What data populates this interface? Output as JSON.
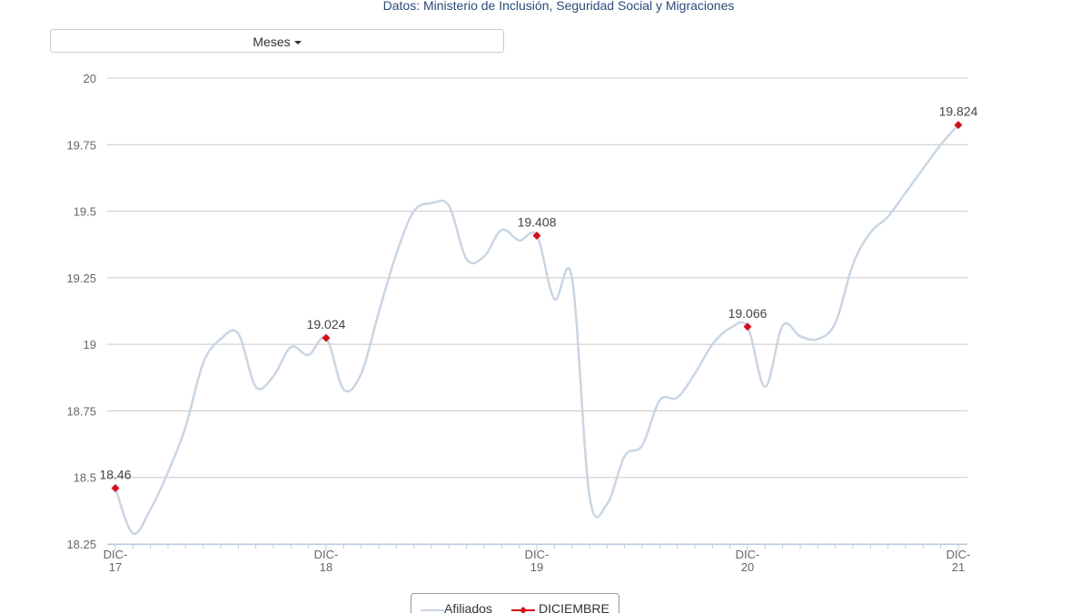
{
  "chart_data": {
    "type": "line",
    "subtitle": "Datos: Ministerio de Inclusión, Seguridad Social y Migraciones",
    "dropdown_label": "Meses",
    "categories": [
      "DIC-17",
      null,
      null,
      null,
      null,
      null,
      null,
      null,
      null,
      null,
      null,
      null,
      "DIC-18",
      null,
      null,
      null,
      null,
      null,
      null,
      null,
      null,
      null,
      null,
      null,
      "DIC-19",
      null,
      null,
      null,
      null,
      null,
      null,
      null,
      null,
      null,
      null,
      null,
      "DIC-20",
      null,
      null,
      null,
      null,
      null,
      null,
      null,
      null,
      null,
      null,
      null,
      "DIC-21"
    ],
    "series": [
      {
        "name": "Afiliados",
        "color": "#c9d6e3",
        "values": [
          18.46,
          18.29,
          18.38,
          18.52,
          18.69,
          18.93,
          19.02,
          19.04,
          18.84,
          18.88,
          18.99,
          18.96,
          19.024,
          18.83,
          18.89,
          19.12,
          19.34,
          19.5,
          19.53,
          19.52,
          19.32,
          19.33,
          19.43,
          19.39,
          19.408,
          19.17,
          19.25,
          18.43,
          18.4,
          18.58,
          18.62,
          18.79,
          18.8,
          18.89,
          19.0,
          19.06,
          19.066,
          18.84,
          19.07,
          19.03,
          19.02,
          19.08,
          19.3,
          19.42,
          19.48,
          19.57,
          19.66,
          19.75,
          19.824
        ]
      },
      {
        "name": "DICIEMBRE",
        "color": "#d0121b",
        "values": [
          18.46,
          null,
          null,
          null,
          null,
          null,
          null,
          null,
          null,
          null,
          null,
          null,
          19.024,
          null,
          null,
          null,
          null,
          null,
          null,
          null,
          null,
          null,
          null,
          null,
          19.408,
          null,
          null,
          null,
          null,
          null,
          null,
          null,
          null,
          null,
          null,
          null,
          19.066,
          null,
          null,
          null,
          null,
          null,
          null,
          null,
          null,
          null,
          null,
          null,
          19.824
        ]
      }
    ],
    "ylim": [
      18.25,
      20
    ],
    "yticks": [
      18.25,
      18.5,
      18.75,
      19,
      19.25,
      19.5,
      19.75,
      20
    ],
    "grid": true
  }
}
